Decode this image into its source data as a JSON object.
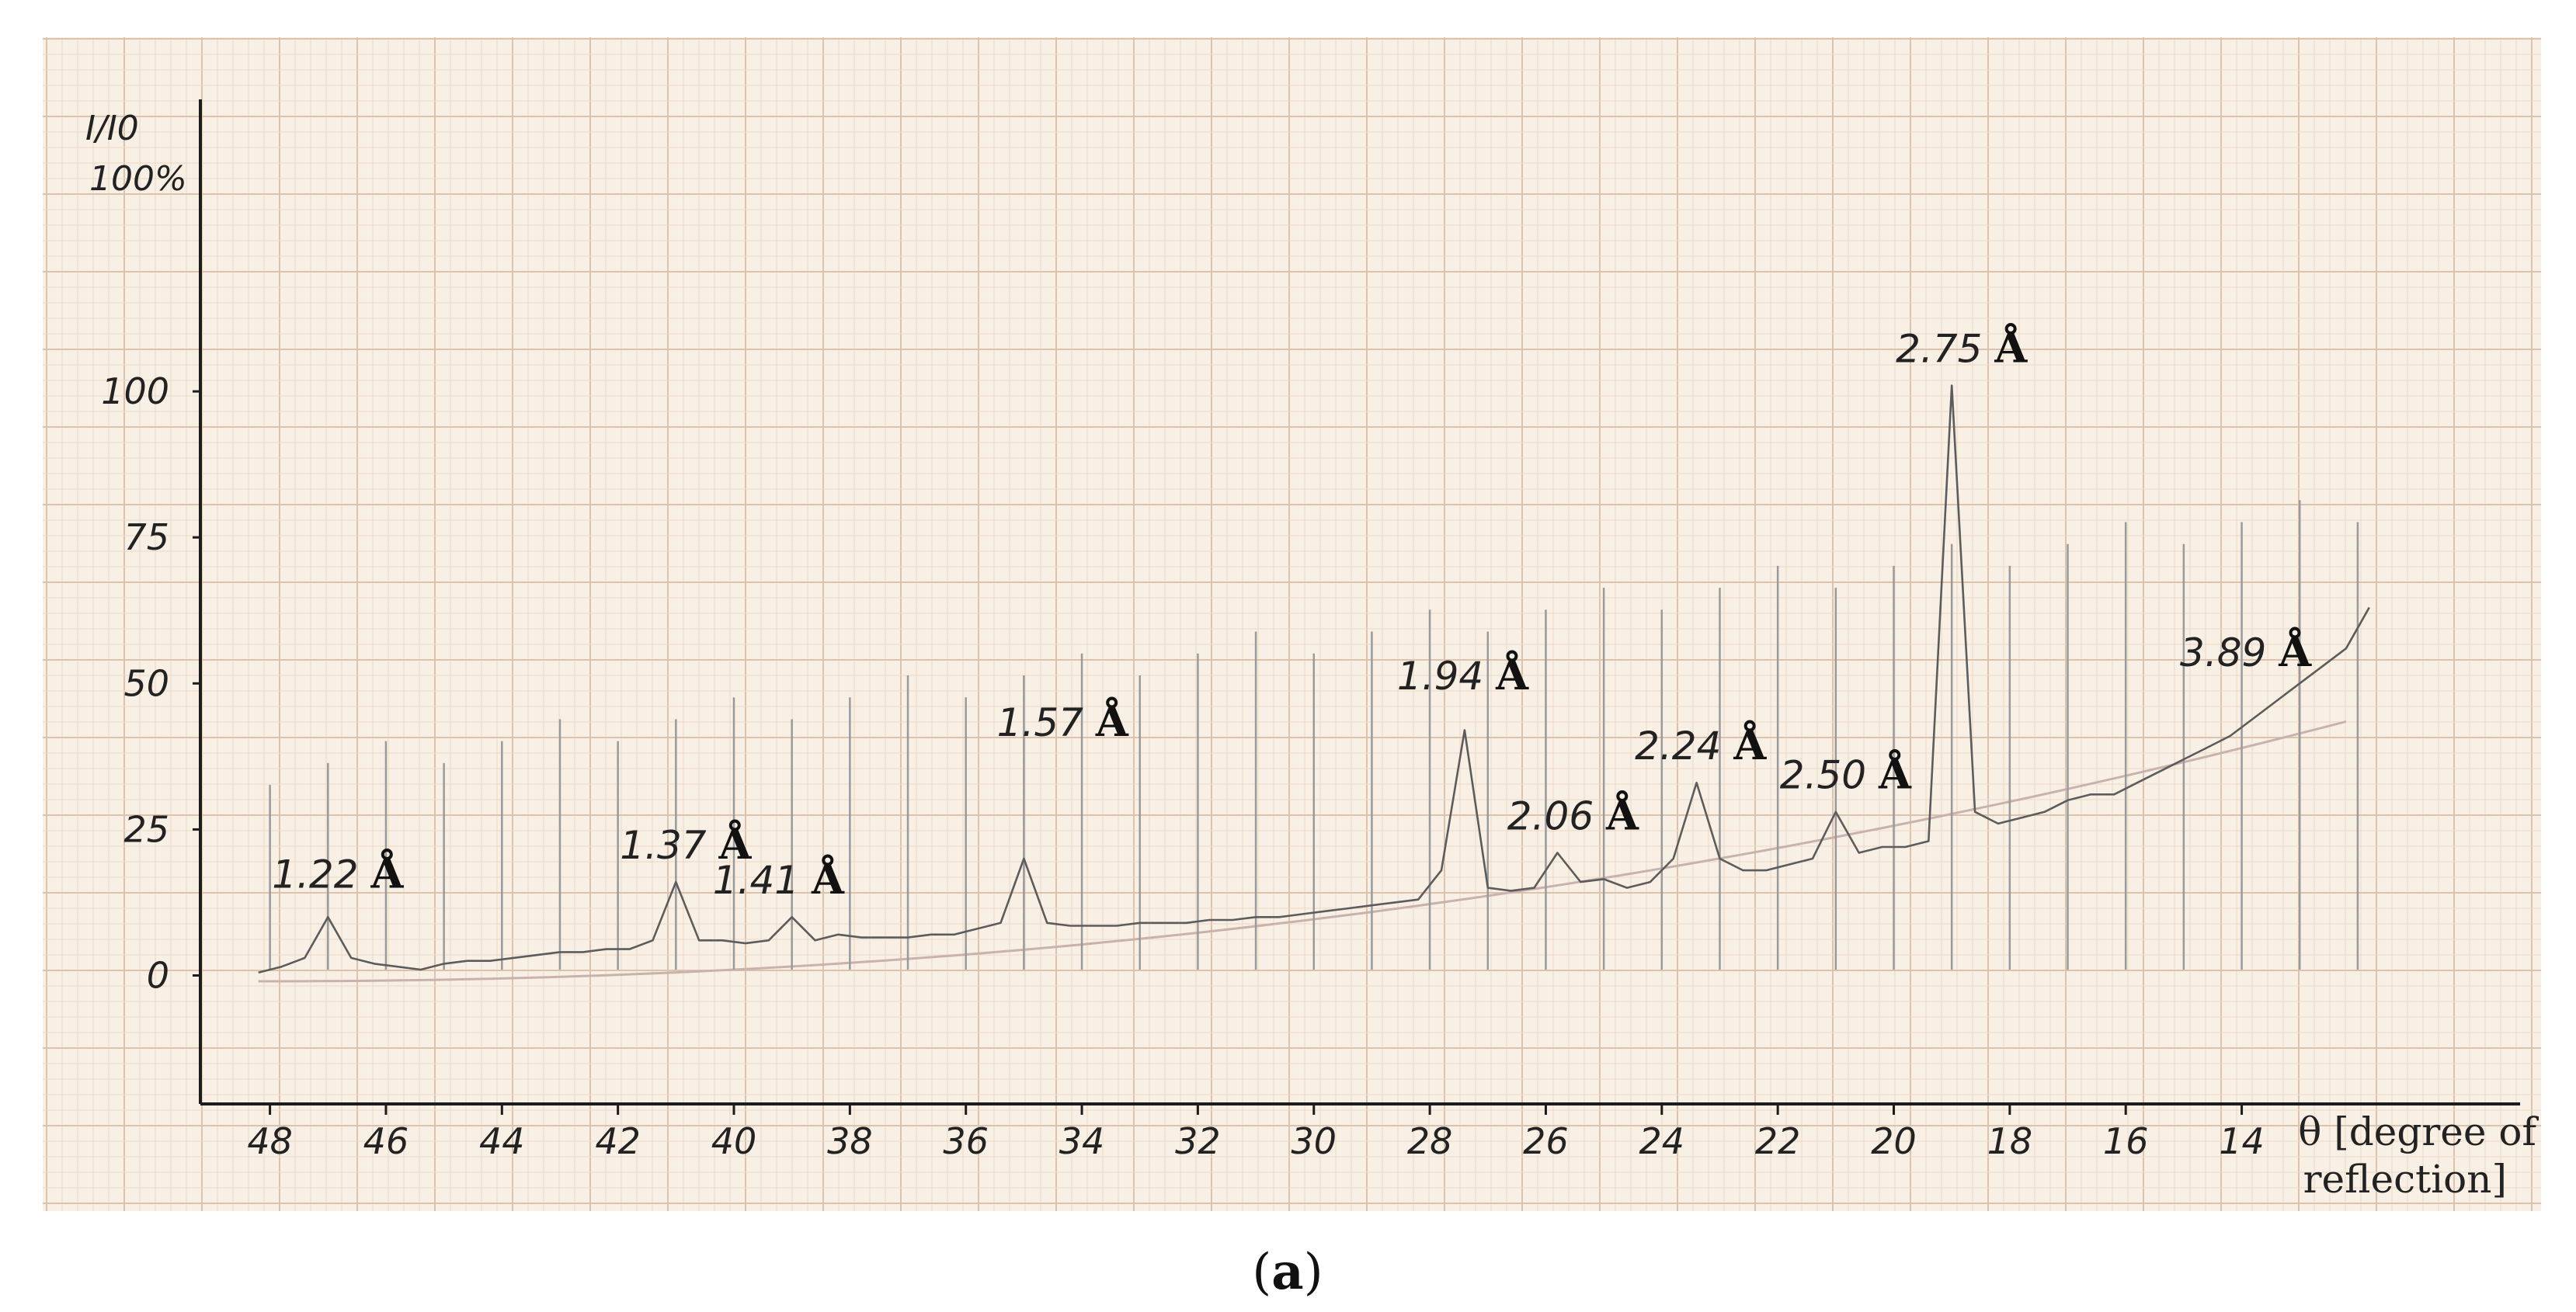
{
  "chart_data": {
    "type": "line",
    "title": "",
    "xlabel": "θ [degree of reflection]",
    "xlabel_lines": [
      "θ [degree of",
      "reflection]"
    ],
    "ylabel": "I/I0",
    "ylabel_unit": "100%",
    "x_reversed": true,
    "xlim": [
      49.2,
      9.2
    ],
    "ylim": [
      -22,
      150
    ],
    "x_ticks": [
      48,
      46,
      44,
      42,
      40,
      38,
      36,
      34,
      32,
      30,
      28,
      26,
      24,
      22,
      20,
      18,
      16,
      14
    ],
    "x_tick_labels": [
      "48",
      "46",
      "44",
      "42",
      "40",
      "38",
      "36",
      "34",
      "32",
      "30",
      "28",
      "26",
      "24",
      "22",
      "20",
      "18",
      "16",
      "14"
    ],
    "y_ticks": [
      0,
      25,
      50,
      75,
      100
    ],
    "y_tick_labels": [
      "0",
      "25",
      "50",
      "75",
      "100"
    ],
    "grid": true,
    "series": [
      {
        "x": [
          48.2,
          47.8,
          47.4,
          47.0,
          46.6,
          46.2,
          45.8,
          45.4,
          45.0,
          44.6,
          44.2,
          43.8,
          43.4,
          43.0,
          42.6,
          42.2,
          41.8,
          41.4,
          41.0,
          40.6,
          40.2,
          39.8,
          39.4,
          39.0,
          38.6,
          38.2,
          37.8,
          37.4,
          37.0,
          36.6,
          36.2,
          35.8,
          35.4,
          35.0,
          34.6,
          34.2,
          33.8,
          33.4,
          33.0,
          32.6,
          32.2,
          31.8,
          31.4,
          31.0,
          30.6,
          30.2,
          29.8,
          29.4,
          29.0,
          28.6,
          28.2,
          27.8,
          27.4,
          27.0,
          26.6,
          26.2,
          25.8,
          25.4,
          25.0,
          24.6,
          24.2,
          23.8,
          23.4,
          23.0,
          22.6,
          22.2,
          21.8,
          21.4,
          21.0,
          20.6,
          20.2,
          19.8,
          19.4,
          19.0,
          18.6,
          18.2,
          17.8,
          17.4,
          17.0,
          16.6,
          16.2,
          15.8,
          15.4,
          15.0,
          14.6,
          14.2,
          13.8,
          13.4,
          13.0,
          12.6,
          12.2,
          11.8
        ],
        "y": [
          0.5,
          1.5,
          3,
          10,
          3,
          2,
          1.5,
          1,
          2,
          2.5,
          2.5,
          3,
          3.5,
          4,
          4,
          4.5,
          4.5,
          6,
          16,
          6,
          6,
          5.5,
          6,
          10,
          6,
          7,
          6.5,
          6.5,
          6.5,
          7,
          7,
          8,
          9,
          20,
          9,
          8.5,
          8.5,
          8.5,
          9,
          9,
          9,
          9.5,
          9.5,
          10,
          10,
          10.5,
          11,
          11.5,
          12,
          12.5,
          13,
          18,
          42,
          15,
          14.5,
          15,
          21,
          16,
          16.5,
          15,
          16,
          20,
          33,
          20,
          18,
          18,
          19,
          20,
          28,
          21,
          22,
          22,
          23,
          101,
          28,
          26,
          27,
          28,
          30,
          31,
          31,
          33,
          35,
          37,
          39,
          41,
          44,
          47,
          50,
          53,
          56,
          63
        ]
      }
    ],
    "peak_markers_x": [
      48.0,
      47.0,
      46.0,
      45.0,
      44.0,
      43.0,
      42.0,
      41.0,
      40.0,
      39.0,
      38.0,
      37.0,
      36.0,
      35.0,
      34.0,
      33.0,
      32.0,
      31.0,
      30.0,
      29.0,
      28.0,
      27.0,
      26.0,
      25.0,
      24.0,
      23.0,
      22.0,
      21.0,
      20.0,
      19.0,
      18.0,
      17.0,
      16.0,
      15.0,
      14.0,
      13.0,
      12.0
    ],
    "annotations": [
      {
        "value": "1.22",
        "unit": "Å",
        "x": 45.7,
        "y": 15
      },
      {
        "value": "1.37",
        "unit": "Å",
        "x": 39.7,
        "y": 20
      },
      {
        "value": "1.41",
        "unit": "Å",
        "x": 38.1,
        "y": 14
      },
      {
        "value": "1.57",
        "unit": "Å",
        "x": 33.2,
        "y": 41
      },
      {
        "value": "1.94",
        "unit": "Å",
        "x": 26.3,
        "y": 49
      },
      {
        "value": "2.06",
        "unit": "Å",
        "x": 24.4,
        "y": 25
      },
      {
        "value": "2.24",
        "unit": "Å",
        "x": 22.2,
        "y": 37
      },
      {
        "value": "2.50",
        "unit": "Å",
        "x": 19.7,
        "y": 32
      },
      {
        "value": "2.75",
        "unit": "Å",
        "x": 17.7,
        "y": 105
      },
      {
        "value": "3.89",
        "unit": "Å",
        "x": 12.8,
        "y": 53
      }
    ]
  },
  "caption": {
    "open": "(",
    "letter": "a",
    "close": ")"
  }
}
